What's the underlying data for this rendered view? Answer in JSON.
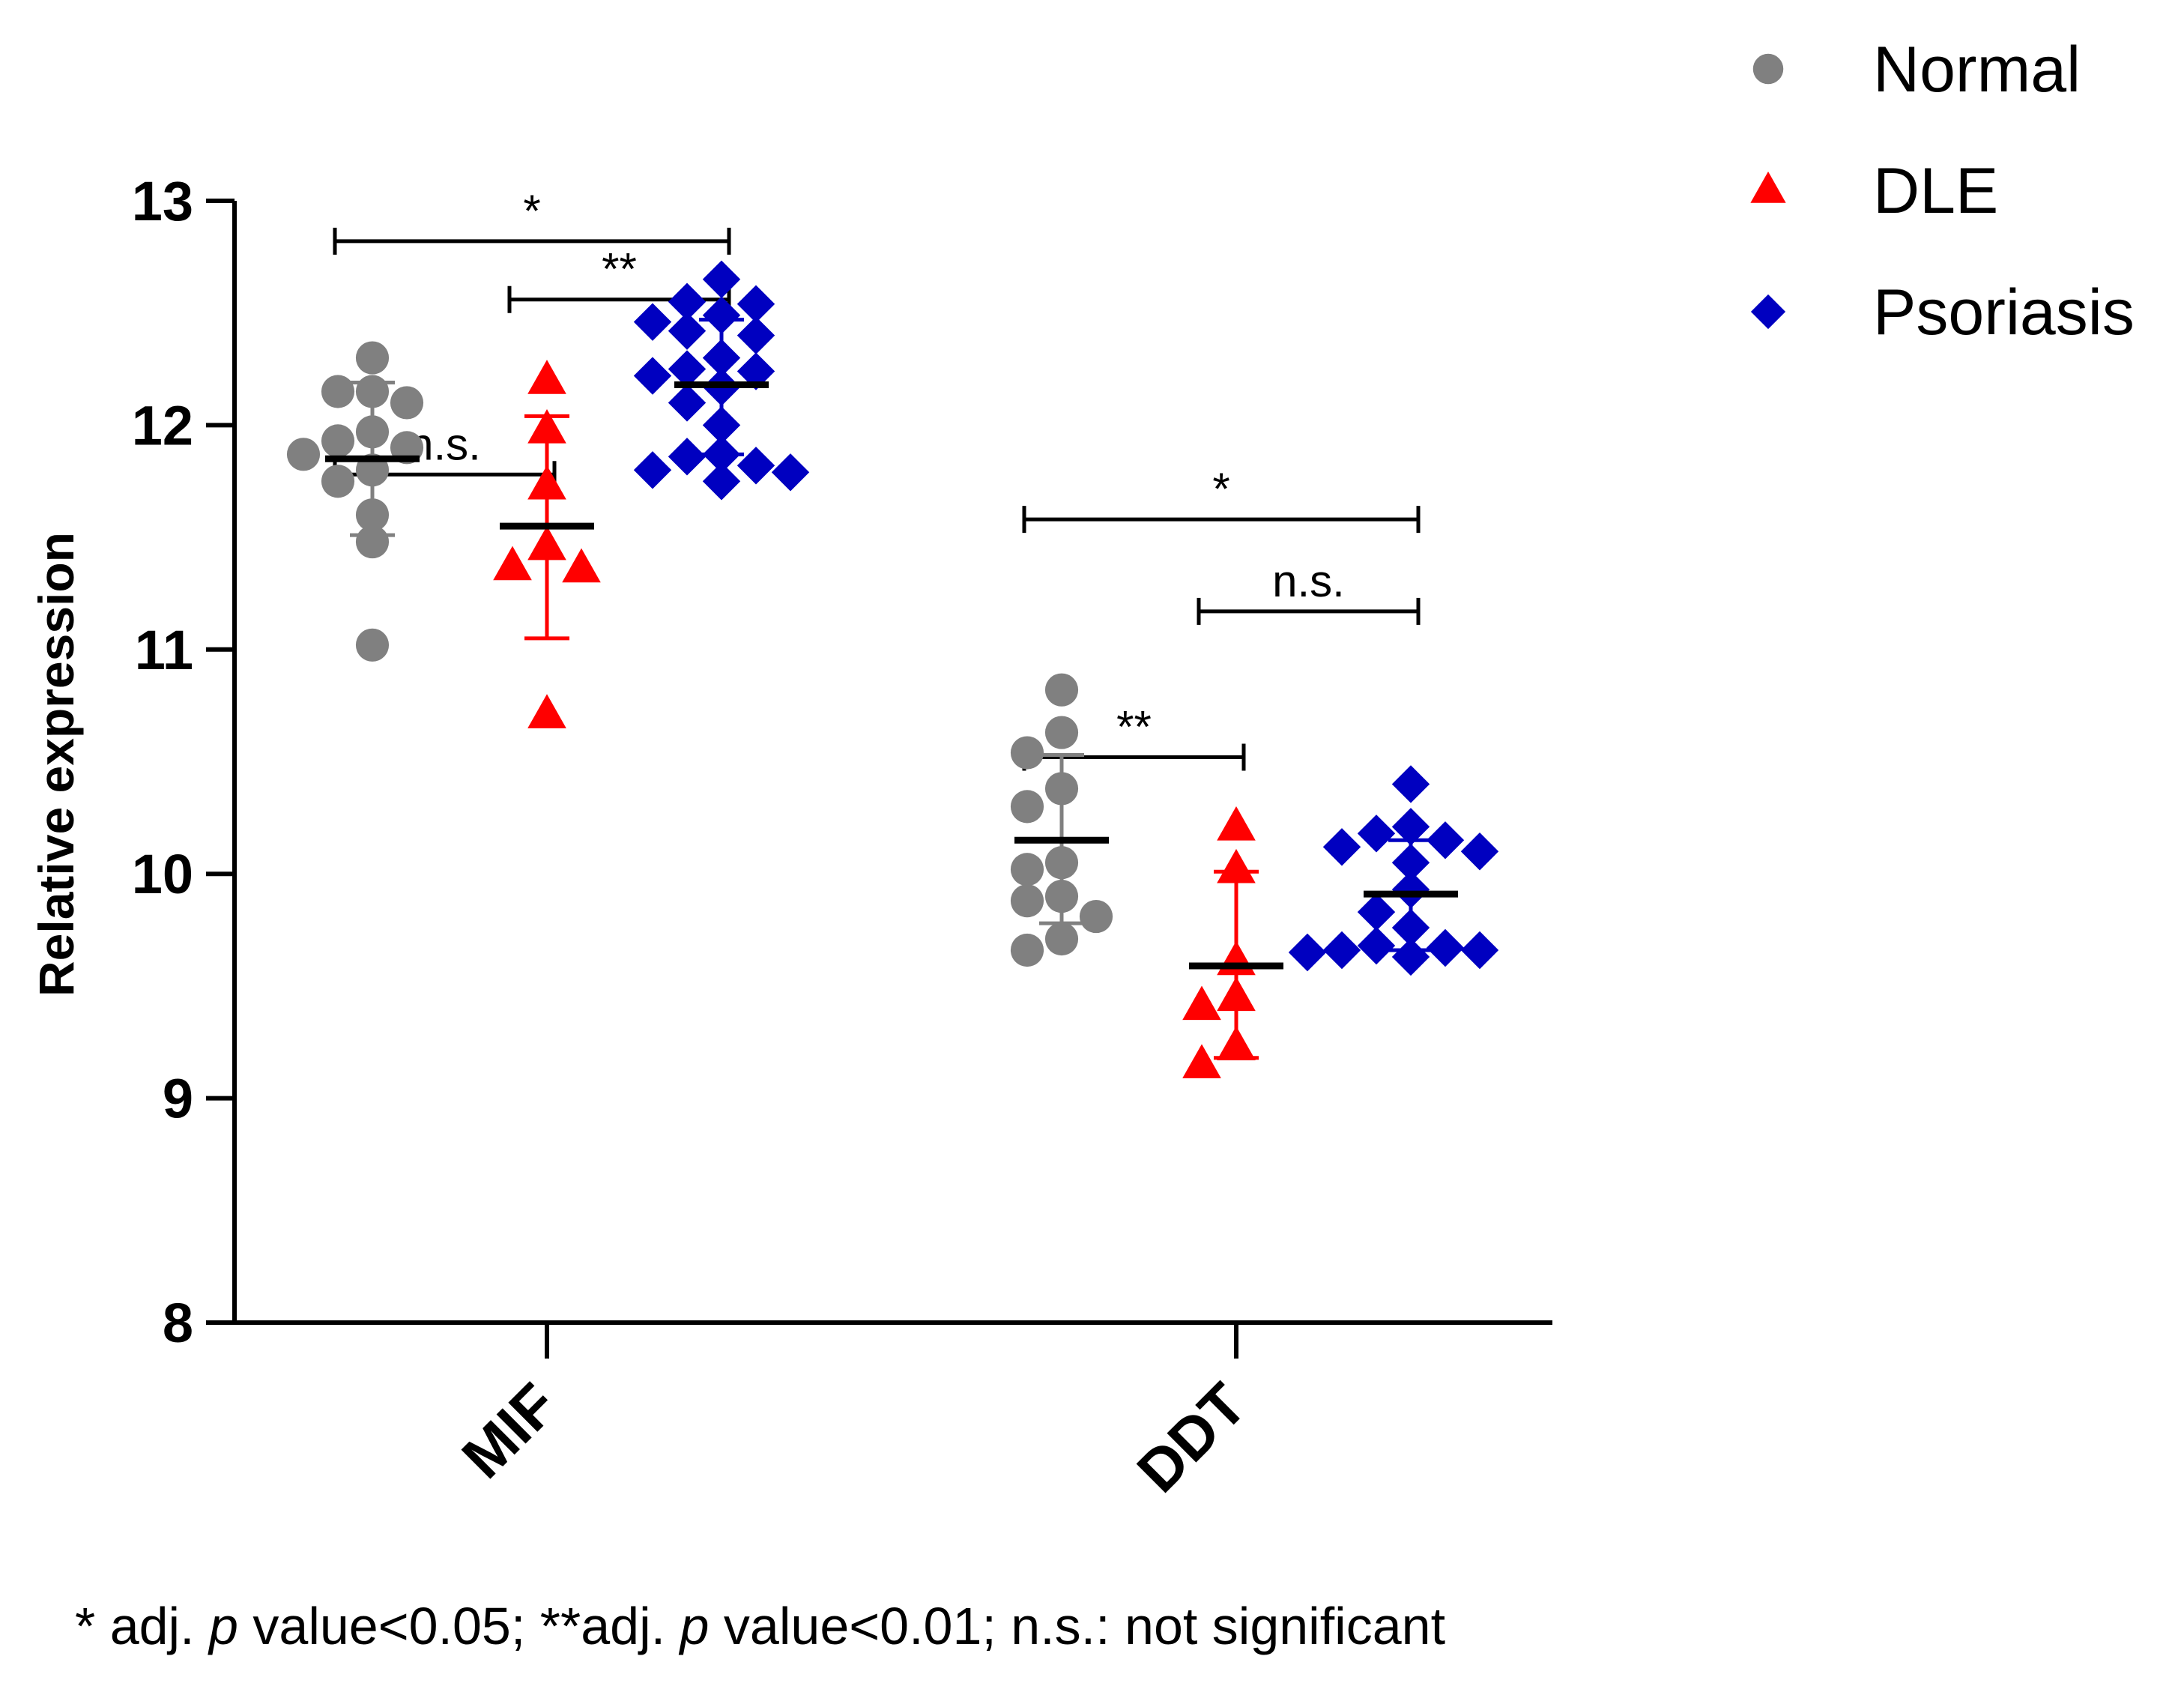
{
  "chart_data": {
    "type": "scatter",
    "ylabel": "Relative expression",
    "ylim": [
      8,
      13
    ],
    "yticks": [
      8,
      9,
      10,
      11,
      12,
      13
    ],
    "categories": [
      "MIF",
      "DDT"
    ],
    "series": [
      {
        "name": "Normal",
        "color": "#808080",
        "marker": "circle",
        "groups": [
          {
            "category": "MIF",
            "mean": 11.85,
            "err_low": 11.51,
            "err_high": 12.19,
            "points": [
              12.3,
              12.1,
              12.15,
              11.97,
              12.15,
              11.93,
              11.87,
              11.8,
              11.9,
              11.75,
              11.6,
              11.48,
              11.02
            ]
          },
          {
            "category": "DDT",
            "mean": 10.15,
            "err_low": 9.78,
            "err_high": 10.53,
            "points": [
              10.82,
              10.63,
              10.54,
              10.38,
              10.3,
              10.05,
              10.02,
              9.9,
              9.88,
              9.81,
              9.71,
              9.66
            ]
          }
        ]
      },
      {
        "name": "DLE",
        "color": "#ff0000",
        "marker": "triangle",
        "groups": [
          {
            "category": "MIF",
            "mean": 11.55,
            "err_low": 11.05,
            "err_high": 12.04,
            "points": [
              12.2,
              11.98,
              11.73,
              11.46,
              11.37,
              11.36,
              10.71
            ]
          },
          {
            "category": "DDT",
            "mean": 9.59,
            "err_low": 9.18,
            "err_high": 10.01,
            "points": [
              10.21,
              10.02,
              9.61,
              9.45,
              9.41,
              9.23,
              9.15
            ]
          }
        ]
      },
      {
        "name": "Psoriasis",
        "color": "#0000c0",
        "marker": "diamond",
        "groups": [
          {
            "category": "MIF",
            "mean": 12.18,
            "err_low": 11.87,
            "err_high": 12.47,
            "points": [
              12.65,
              12.55,
              12.54,
              12.49,
              12.46,
              12.42,
              12.4,
              12.3,
              12.25,
              12.24,
              12.22,
              12.17,
              12.1,
              12.0,
              11.87,
              11.86,
              11.82,
              11.8,
              11.79,
              11.75
            ]
          },
          {
            "category": "DDT",
            "mean": 9.91,
            "err_low": 9.66,
            "err_high": 10.15,
            "points": [
              10.4,
              10.21,
              10.18,
              10.15,
              10.12,
              10.1,
              10.05,
              9.93,
              9.83,
              9.76,
              9.68,
              9.67,
              9.66,
              9.66,
              9.65,
              9.63
            ]
          }
        ]
      }
    ],
    "legend": {
      "position": "top-right",
      "entries": [
        "Normal",
        "DLE",
        "Psoriasis"
      ]
    },
    "significance": [
      {
        "category": "MIF",
        "from": "Normal",
        "to": "DLE",
        "label": "n.s.",
        "level": 11.78
      },
      {
        "category": "MIF",
        "from": "DLE",
        "to": "Psoriasis",
        "label": "**",
        "level": 12.56
      },
      {
        "category": "MIF",
        "from": "Normal",
        "to": "Psoriasis",
        "label": "*",
        "level": 12.82
      },
      {
        "category": "DDT",
        "from": "Normal",
        "to": "DLE",
        "label": "**",
        "level": 10.52
      },
      {
        "category": "DDT",
        "from": "DLE",
        "to": "Psoriasis",
        "label": "n.s.",
        "level": 11.17
      },
      {
        "category": "DDT",
        "from": "Normal",
        "to": "Psoriasis",
        "label": "*",
        "level": 11.58
      }
    ]
  },
  "footnote": {
    "part1": "* adj. ",
    "p1": "p",
    "part2": " value<0.05; **adj. ",
    "p2": "p",
    "part3": " value<0.01; n.s.: not significant"
  }
}
